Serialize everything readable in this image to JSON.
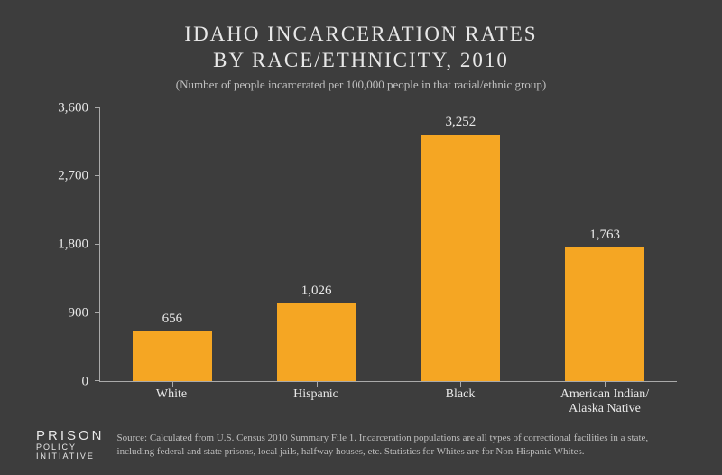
{
  "title_line1": "IDAHO INCARCERATION RATES",
  "title_line2": "BY RACE/ETHNICITY, 2010",
  "subtitle": "(Number of people incarcerated per 100,000 people in that racial/ethnic group)",
  "chart": {
    "type": "bar",
    "ylim": [
      0,
      3600
    ],
    "ytick_step": 900,
    "yticks": [
      "0",
      "900",
      "1,800",
      "2,700",
      "3,600"
    ],
    "bar_color": "#f5a623",
    "bar_width_pct": 55,
    "axis_color": "#aaaaaa",
    "text_color": "#e8e8e8",
    "background_color": "#3d3d3d",
    "categories": [
      "White",
      "Hispanic",
      "Black",
      "American Indian/\nAlaska Native"
    ],
    "values": [
      656,
      1026,
      3252,
      1763
    ],
    "value_labels": [
      "656",
      "1,026",
      "3,252",
      "1,763"
    ],
    "title_fontsize": 23,
    "label_fontsize": 14,
    "value_fontsize": 15
  },
  "logo": {
    "line1": "PRISON",
    "line2": "POLICY INITIATIVE"
  },
  "source": "Source: Calculated from U.S. Census 2010 Summary File 1. Incarceration populations are all types of correctional facilities in a state, including federal and state prisons, local jails, halfway houses, etc. Statistics for Whites are for Non-Hispanic Whites."
}
